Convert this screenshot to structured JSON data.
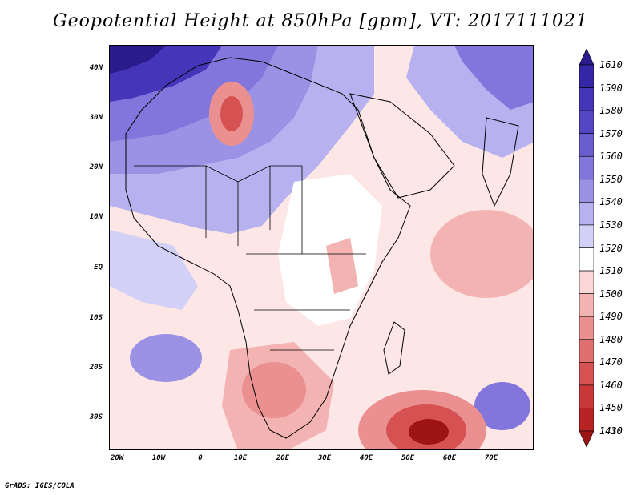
{
  "title": "Geopotential Height at 850hPa [gpm], VT: 2017111021",
  "credit": "GrADS: IGES/COLA",
  "lat_labels": [
    "40N",
    "30N",
    "20N",
    "10N",
    "EQ",
    "10S",
    "20S",
    "30S"
  ],
  "lon_labels": [
    "20W",
    "10W",
    "0",
    "10E",
    "20E",
    "30E",
    "40E",
    "50E",
    "60E",
    "70E"
  ],
  "colorbar": {
    "labels": [
      "1610",
      "1590",
      "1580",
      "1570",
      "1560",
      "1550",
      "1540",
      "1530",
      "1520",
      "1510",
      "1500",
      "1490",
      "1480",
      "1470",
      "1460",
      "1450",
      "1430",
      "1410"
    ],
    "colors": [
      "#2a1a8c",
      "#3526a6",
      "#4535b8",
      "#5546c4",
      "#6a5dd0",
      "#8276dc",
      "#9b92e6",
      "#b7b1ef",
      "#d3d0f7",
      "#ffffff",
      "#fbd6d6",
      "#f4b3b3",
      "#ea9090",
      "#e07070",
      "#d65252",
      "#c93838",
      "#b82424",
      "#9e1414"
    ]
  }
}
